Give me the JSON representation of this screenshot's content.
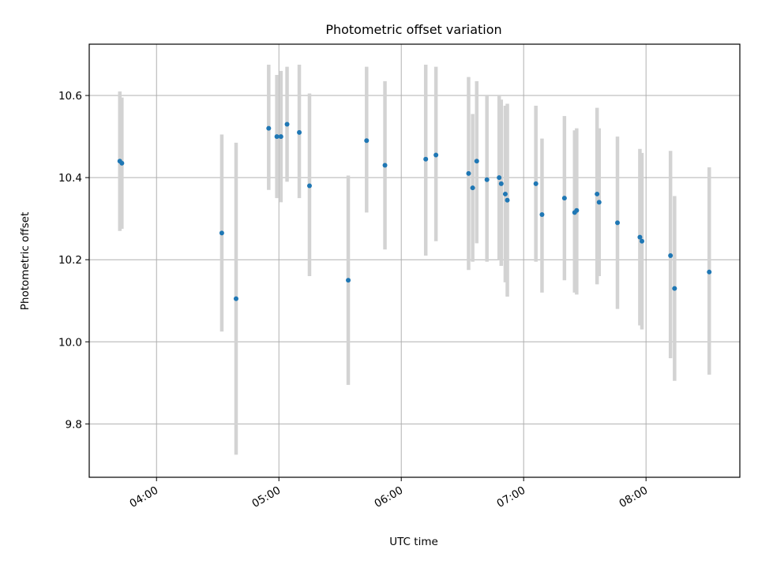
{
  "chart_data": {
    "type": "scatter",
    "title": "Photometric offset variation",
    "xlabel": "UTC time",
    "ylabel": "Photometric offset",
    "xlim": [
      "03:27",
      "08:46"
    ],
    "ylim": [
      9.67,
      10.725
    ],
    "x_ticks": [
      "04:00",
      "05:00",
      "06:00",
      "07:00",
      "08:00"
    ],
    "y_ticks": [
      "9.8",
      "10.0",
      "10.2",
      "10.4",
      "10.6"
    ],
    "grid": true,
    "point_color": "#1f77b4",
    "errorbar_color": "#d3d3d3",
    "points": [
      {
        "x": "03:42",
        "y": 10.44,
        "ylo": 10.27,
        "yhi": 10.61
      },
      {
        "x": "03:43",
        "y": 10.435,
        "ylo": 10.275,
        "yhi": 10.595
      },
      {
        "x": "04:32",
        "y": 10.265,
        "ylo": 10.025,
        "yhi": 10.505
      },
      {
        "x": "04:39",
        "y": 10.105,
        "ylo": 9.725,
        "yhi": 10.485
      },
      {
        "x": "04:55",
        "y": 10.52,
        "ylo": 10.37,
        "yhi": 10.675
      },
      {
        "x": "04:59",
        "y": 10.5,
        "ylo": 10.35,
        "yhi": 10.65
      },
      {
        "x": "05:01",
        "y": 10.5,
        "ylo": 10.34,
        "yhi": 10.66
      },
      {
        "x": "05:04",
        "y": 10.53,
        "ylo": 10.39,
        "yhi": 10.67
      },
      {
        "x": "05:10",
        "y": 10.51,
        "ylo": 10.35,
        "yhi": 10.675
      },
      {
        "x": "05:15",
        "y": 10.38,
        "ylo": 10.16,
        "yhi": 10.605
      },
      {
        "x": "05:34",
        "y": 10.15,
        "ylo": 9.895,
        "yhi": 10.405
      },
      {
        "x": "05:43",
        "y": 10.49,
        "ylo": 10.315,
        "yhi": 10.67
      },
      {
        "x": "05:52",
        "y": 10.43,
        "ylo": 10.225,
        "yhi": 10.635
      },
      {
        "x": "06:12",
        "y": 10.445,
        "ylo": 10.21,
        "yhi": 10.675
      },
      {
        "x": "06:17",
        "y": 10.455,
        "ylo": 10.245,
        "yhi": 10.67
      },
      {
        "x": "06:33",
        "y": 10.41,
        "ylo": 10.175,
        "yhi": 10.645
      },
      {
        "x": "06:35",
        "y": 10.375,
        "ylo": 10.195,
        "yhi": 10.555
      },
      {
        "x": "06:37",
        "y": 10.44,
        "ylo": 10.24,
        "yhi": 10.635
      },
      {
        "x": "06:42",
        "y": 10.395,
        "ylo": 10.195,
        "yhi": 10.6
      },
      {
        "x": "06:48",
        "y": 10.4,
        "ylo": 10.2,
        "yhi": 10.6
      },
      {
        "x": "06:49",
        "y": 10.385,
        "ylo": 10.185,
        "yhi": 10.59
      },
      {
        "x": "06:51",
        "y": 10.36,
        "ylo": 10.145,
        "yhi": 10.575
      },
      {
        "x": "06:52",
        "y": 10.345,
        "ylo": 10.11,
        "yhi": 10.58
      },
      {
        "x": "07:06",
        "y": 10.385,
        "ylo": 10.195,
        "yhi": 10.575
      },
      {
        "x": "07:09",
        "y": 10.31,
        "ylo": 10.12,
        "yhi": 10.495
      },
      {
        "x": "07:20",
        "y": 10.35,
        "ylo": 10.15,
        "yhi": 10.55
      },
      {
        "x": "07:25",
        "y": 10.315,
        "ylo": 10.12,
        "yhi": 10.515
      },
      {
        "x": "07:26",
        "y": 10.32,
        "ylo": 10.115,
        "yhi": 10.52
      },
      {
        "x": "07:36",
        "y": 10.36,
        "ylo": 10.14,
        "yhi": 10.57
      },
      {
        "x": "07:37",
        "y": 10.34,
        "ylo": 10.16,
        "yhi": 10.52
      },
      {
        "x": "07:46",
        "y": 10.29,
        "ylo": 10.08,
        "yhi": 10.5
      },
      {
        "x": "07:57",
        "y": 10.255,
        "ylo": 10.04,
        "yhi": 10.47
      },
      {
        "x": "07:58",
        "y": 10.245,
        "ylo": 10.03,
        "yhi": 10.46
      },
      {
        "x": "08:12",
        "y": 10.21,
        "ylo": 9.96,
        "yhi": 10.465
      },
      {
        "x": "08:14",
        "y": 10.13,
        "ylo": 9.905,
        "yhi": 10.355
      },
      {
        "x": "08:31",
        "y": 10.17,
        "ylo": 9.92,
        "yhi": 10.425
      }
    ]
  }
}
